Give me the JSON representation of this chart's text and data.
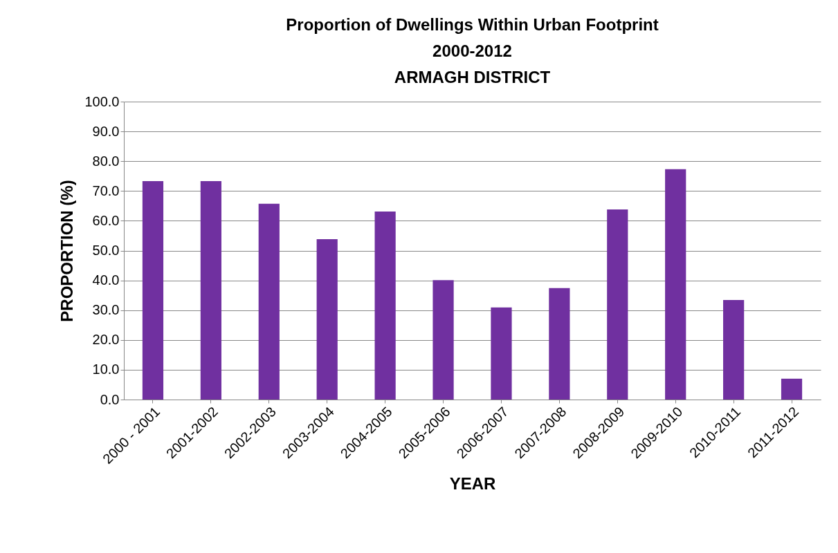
{
  "chart_data": {
    "type": "bar",
    "title": [
      "Proportion of Dwellings Within Urban Footprint",
      "2000-2012",
      "ARMAGH DISTRICT"
    ],
    "xlabel": "YEAR",
    "ylabel": "PROPORTION (%)",
    "categories": [
      "2000 - 2001",
      "2001-2002",
      "2002-2003",
      "2003-2004",
      "2004-2005",
      "2005-2006",
      "2006-2007",
      "2007-2008",
      "2008-2009",
      "2009-2010",
      "2010-2011",
      "2011-2012"
    ],
    "values": [
      73.3,
      73.3,
      65.7,
      53.8,
      63.1,
      40.1,
      30.9,
      37.4,
      63.8,
      77.3,
      33.4,
      7.0
    ],
    "color": "#7030a0",
    "ylim": [
      0,
      100
    ],
    "yticks": [
      {
        "value": 0,
        "label": "0.0"
      },
      {
        "value": 10,
        "label": "10.0"
      },
      {
        "value": 20,
        "label": "20.0"
      },
      {
        "value": 30,
        "label": "30.0"
      },
      {
        "value": 40,
        "label": "40.0"
      },
      {
        "value": 50,
        "label": "50.0"
      },
      {
        "value": 60,
        "label": "60.0"
      },
      {
        "value": 70,
        "label": "70.0"
      },
      {
        "value": 80,
        "label": "80.0"
      },
      {
        "value": 90,
        "label": "90.0"
      },
      {
        "value": 100,
        "label": "100.0"
      }
    ],
    "grid": "y"
  }
}
